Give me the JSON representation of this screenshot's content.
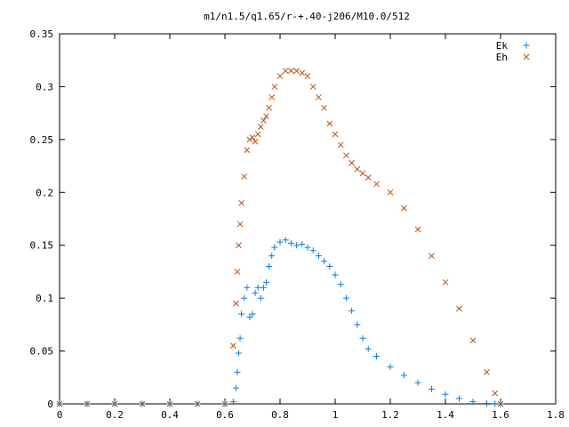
{
  "chart_data": {
    "type": "scatter",
    "title": "m1/n1.5/q1.65/r-+.40-j206/M10.0/512",
    "xlabel": "",
    "ylabel": "",
    "xlim": [
      0,
      1.8
    ],
    "ylim": [
      0,
      0.35
    ],
    "xticks": [
      0,
      0.2,
      0.4,
      0.6,
      0.8,
      1,
      1.2,
      1.4,
      1.6,
      1.8
    ],
    "xtick_labels": [
      "0",
      "0.2",
      "0.4",
      "0.6",
      "0.8",
      "1",
      "1.2",
      "1.4",
      "1.6",
      "1.8"
    ],
    "yticks": [
      0,
      0.05,
      0.1,
      0.15,
      0.2,
      0.25,
      0.3,
      0.35
    ],
    "ytick_labels": [
      "0",
      "0.05",
      "0.1",
      "0.15",
      "0.2",
      "0.25",
      "0.3",
      "0.35"
    ],
    "grid": false,
    "legend_position": "top-right",
    "series": [
      {
        "name": "Ek",
        "marker": "plus",
        "color": "#0a7de0",
        "x": [
          0.0,
          0.1,
          0.2,
          0.3,
          0.4,
          0.5,
          0.6,
          0.63,
          0.64,
          0.645,
          0.65,
          0.655,
          0.66,
          0.67,
          0.68,
          0.69,
          0.7,
          0.71,
          0.72,
          0.73,
          0.74,
          0.75,
          0.76,
          0.77,
          0.78,
          0.8,
          0.82,
          0.84,
          0.86,
          0.88,
          0.9,
          0.92,
          0.94,
          0.96,
          0.98,
          1.0,
          1.02,
          1.04,
          1.06,
          1.08,
          1.1,
          1.12,
          1.15,
          1.2,
          1.25,
          1.3,
          1.35,
          1.4,
          1.45,
          1.5,
          1.55,
          1.58,
          1.6
        ],
        "y": [
          0,
          0,
          0,
          0,
          0,
          0,
          0,
          0.002,
          0.015,
          0.03,
          0.048,
          0.062,
          0.085,
          0.1,
          0.11,
          0.082,
          0.085,
          0.105,
          0.11,
          0.1,
          0.11,
          0.115,
          0.13,
          0.14,
          0.148,
          0.153,
          0.155,
          0.152,
          0.15,
          0.151,
          0.148,
          0.145,
          0.14,
          0.135,
          0.13,
          0.122,
          0.113,
          0.1,
          0.088,
          0.075,
          0.062,
          0.052,
          0.045,
          0.035,
          0.027,
          0.02,
          0.014,
          0.009,
          0.005,
          0.002,
          0.0005,
          0.0002,
          0
        ]
      },
      {
        "name": "Eh",
        "marker": "cross",
        "color": "#c05010",
        "x": [
          0.0,
          0.1,
          0.2,
          0.3,
          0.4,
          0.5,
          0.6,
          0.63,
          0.64,
          0.645,
          0.65,
          0.655,
          0.66,
          0.67,
          0.68,
          0.69,
          0.7,
          0.71,
          0.72,
          0.73,
          0.74,
          0.75,
          0.76,
          0.77,
          0.78,
          0.8,
          0.82,
          0.84,
          0.86,
          0.88,
          0.9,
          0.92,
          0.94,
          0.96,
          0.98,
          1.0,
          1.02,
          1.04,
          1.06,
          1.08,
          1.1,
          1.12,
          1.15,
          1.2,
          1.25,
          1.3,
          1.35,
          1.4,
          1.45,
          1.5,
          1.55,
          1.58,
          1.6
        ],
        "y": [
          0,
          0,
          0,
          0,
          0,
          0,
          0,
          0.055,
          0.095,
          0.125,
          0.15,
          0.17,
          0.19,
          0.215,
          0.24,
          0.25,
          0.252,
          0.248,
          0.255,
          0.262,
          0.268,
          0.272,
          0.28,
          0.29,
          0.3,
          0.31,
          0.315,
          0.315,
          0.315,
          0.313,
          0.31,
          0.3,
          0.29,
          0.28,
          0.265,
          0.255,
          0.245,
          0.235,
          0.228,
          0.222,
          0.218,
          0.214,
          0.208,
          0.2,
          0.185,
          0.165,
          0.14,
          0.115,
          0.09,
          0.06,
          0.03,
          0.01,
          0.0
        ]
      }
    ]
  }
}
